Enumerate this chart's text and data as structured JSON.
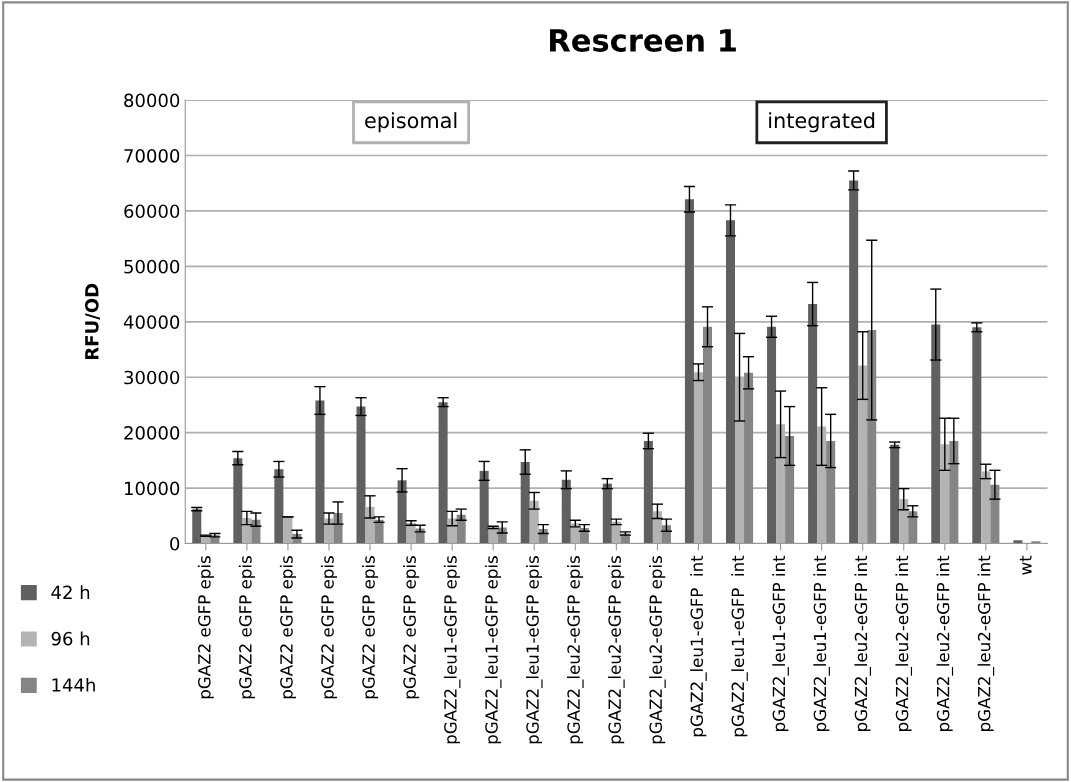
{
  "chart_data": {
    "type": "bar",
    "title": "Rescreen 1",
    "ylabel": "RFU/OD",
    "categories": [
      "pGAZ2 eGFP epis",
      "pGAZ2 eGFP epis",
      "pGAZ2 eGFP epis",
      "pGAZ2 eGFP epis",
      "pGAZ2 eGFP epis",
      "pGAZ2 eGFP epis",
      "pGAZ2_leu1-eGFP epis",
      "pGAZ2_leu1-eGFP epis",
      "pGAZ2_leu1-eGFP epis",
      "pGAZ2_leu2-eGFP epis",
      "pGAZ2_leu2-eGFP epis",
      "pGAZ2_leu2-eGFP epis",
      "pGAZ2_leu1-eGFP  int",
      "pGAZ2_leu1-eGFP  int",
      "pGAZ2_leu1-eGFP int",
      "pGAZ2_leu1-eGFP int",
      "pGAZ2_leu2-eGFP int",
      "pGAZ2_leu2-eGFP int",
      "pGAZ2_leu2-eGFP int",
      "pGAZ2_leu2-eGFP int",
      "wt"
    ],
    "series": [
      {
        "name": "42 h",
        "color": "#606060",
        "values": [
          6200,
          15400,
          13400,
          25800,
          24700,
          11400,
          25500,
          13100,
          14700,
          11500,
          10800,
          18500,
          62100,
          58300,
          39100,
          43200,
          65500,
          17800,
          39500,
          39000,
          600
        ],
        "errors": [
          300,
          1200,
          1400,
          2500,
          1600,
          2100,
          800,
          1700,
          2200,
          1600,
          900,
          1400,
          2300,
          2800,
          1900,
          3900,
          1700,
          500,
          6400,
          800,
          null
        ]
      },
      {
        "name": "96 h",
        "color": "#b3b3b3",
        "values": [
          1400,
          4600,
          4800,
          4500,
          6600,
          3700,
          4500,
          2900,
          7700,
          3600,
          3900,
          5800,
          30900,
          30000,
          21500,
          21100,
          32100,
          8000,
          17900,
          13000,
          null
        ],
        "errors": [
          100,
          1200,
          0,
          1000,
          2000,
          400,
          1300,
          200,
          1500,
          600,
          500,
          1300,
          1500,
          7900,
          6000,
          7000,
          6100,
          1900,
          4700,
          1300,
          null
        ]
      },
      {
        "name": "144h",
        "color": "#858585",
        "values": [
          1500,
          4300,
          1700,
          5500,
          4300,
          2700,
          5200,
          2900,
          2600,
          2800,
          1800,
          3300,
          39100,
          30800,
          19400,
          18500,
          38500,
          5800,
          18500,
          10600,
          400
        ],
        "errors": [
          300,
          1200,
          700,
          2000,
          500,
          600,
          1000,
          1000,
          800,
          600,
          300,
          1100,
          3600,
          2900,
          5300,
          4800,
          16200,
          1000,
          4100,
          2600,
          null
        ]
      }
    ],
    "ylim": [
      0,
      80000
    ],
    "yticks": [
      0,
      10000,
      20000,
      30000,
      40000,
      50000,
      60000,
      70000,
      80000
    ],
    "grid": "y",
    "legend": "bottom left",
    "annotations": [
      "episomal",
      "integrated"
    ]
  }
}
